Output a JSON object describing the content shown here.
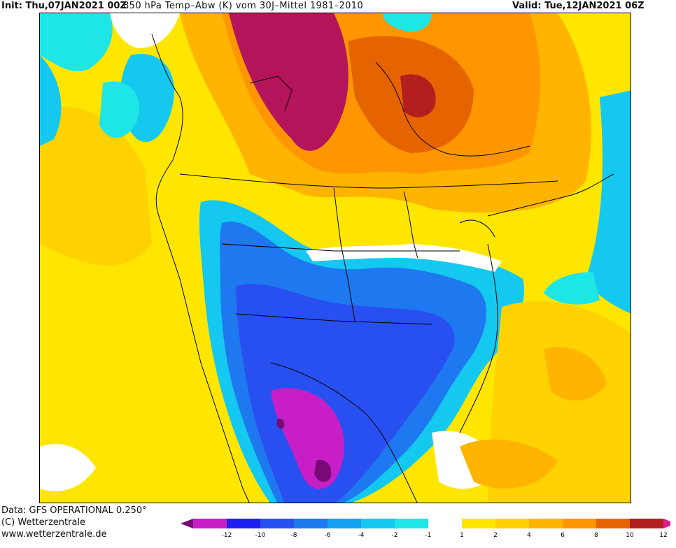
{
  "header": {
    "init": "Init: Thu,07JAN2021 00Z",
    "title": "850 hPa Temp–Abw (K) vom 30J–Mittel 1981–2010",
    "valid": "Valid: Tue,12JAN2021 06Z"
  },
  "footer": {
    "data_source": "Data: GFS OPERATIONAL 0.250°",
    "copyright": "(C) Wetterzentrale",
    "url": "www.wetterzentrale.de"
  },
  "legend": {
    "labels": [
      "-12",
      "-10",
      "-8",
      "-6",
      "-4",
      "-2",
      "-1",
      "1",
      "2",
      "4",
      "6",
      "8",
      "10",
      "12"
    ],
    "colors": [
      "#c81ec8",
      "#1e1ef0",
      "#2850f0",
      "#1e78f0",
      "#14a0f0",
      "#14c8f0",
      "#1ee6e6",
      "#ffffff",
      "#ffe600",
      "#ffd200",
      "#ffb400",
      "#ff9600",
      "#e66400",
      "#b41e1e"
    ]
  },
  "colors": {
    "warm_strong": "#b4145a",
    "warm": "#e66400",
    "mild": "#ffd200",
    "cold": "#14c8f0",
    "very_cold": "#1e50f0",
    "extreme_cold": "#c81ec8"
  }
}
